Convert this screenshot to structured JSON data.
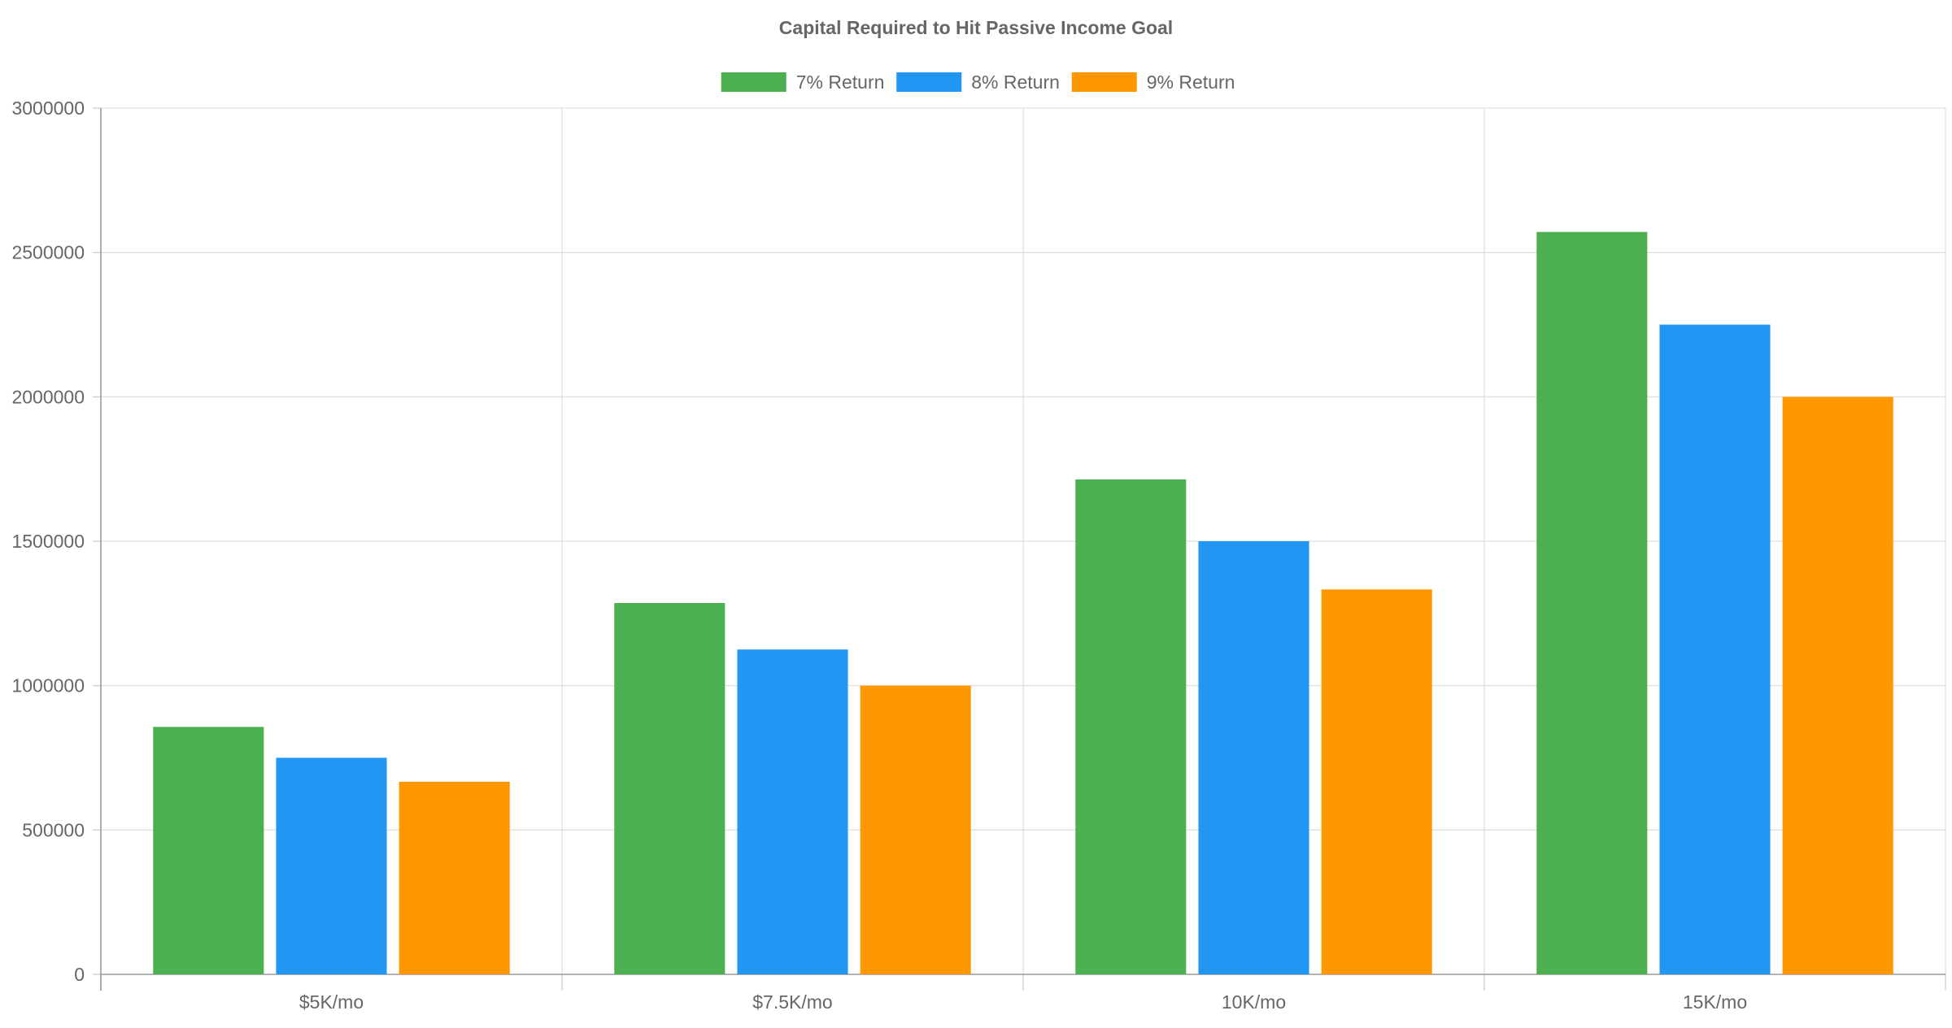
{
  "chart_data": {
    "type": "bar",
    "title": "Capital Required to Hit Passive Income Goal",
    "categories": [
      "$5K/mo",
      "$7.5K/mo",
      "10K/mo",
      "15K/mo"
    ],
    "series": [
      {
        "name": "7% Return",
        "color": "#4caf50",
        "values": [
          857000,
          1286000,
          1714000,
          2571000
        ]
      },
      {
        "name": "8% Return",
        "color": "#2196f3",
        "values": [
          750000,
          1125000,
          1500000,
          2250000
        ]
      },
      {
        "name": "9% Return",
        "color": "#ff9800",
        "values": [
          667000,
          1000000,
          1333000,
          2000000
        ]
      }
    ],
    "y_ticks": [
      "0",
      "500000",
      "1000000",
      "1500000",
      "2000000",
      "2500000",
      "3000000"
    ],
    "ylim": [
      0,
      3000000
    ],
    "xlabel": "",
    "ylabel": "",
    "grid": true,
    "legend": "top-center"
  }
}
